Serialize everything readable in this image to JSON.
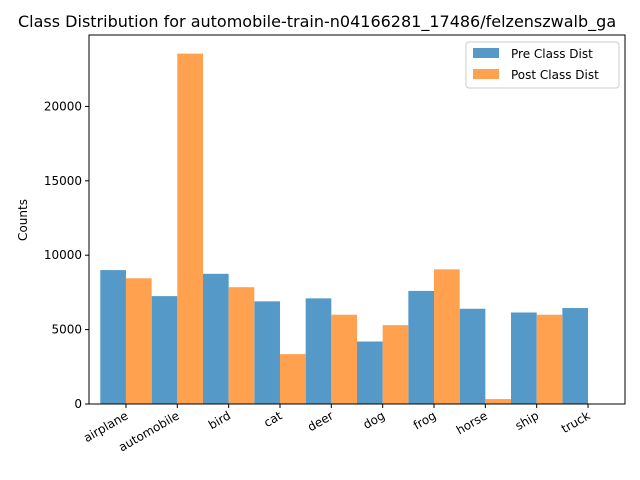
{
  "chart_data": {
    "type": "bar",
    "title": "Class Distribution for automobile-train-n04166281_17486/felzenszwalb_ga",
    "xlabel": "",
    "ylabel": "Counts",
    "ylim": [
      0,
      24800
    ],
    "yticks": [
      0,
      5000,
      10000,
      15000,
      20000
    ],
    "grid": false,
    "legend_position": "top-right",
    "categories": [
      "airplane",
      "automobile",
      "bird",
      "cat",
      "deer",
      "dog",
      "frog",
      "horse",
      "ship",
      "truck"
    ],
    "series": [
      {
        "name": "Pre Class Dist",
        "color": "#5599c8",
        "values": [
          9000,
          7250,
          8750,
          6900,
          7100,
          4200,
          7600,
          6400,
          6150,
          6450
        ]
      },
      {
        "name": "Post Class Dist",
        "color": "#ffa14e",
        "values": [
          8450,
          23550,
          7850,
          3350,
          6000,
          5300,
          9050,
          330,
          6000,
          0
        ]
      }
    ]
  }
}
